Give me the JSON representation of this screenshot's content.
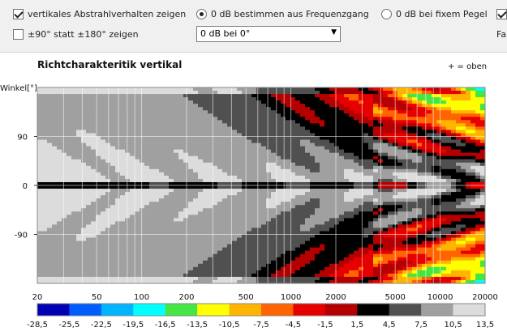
{
  "toolbar": {
    "vert_checkbox_label": "vertikales Abstrahlverhalten zeigen",
    "range_checkbox_label": "±90° statt ±180° zeigen",
    "radio1_label": "0 dB bestimmen aus Frequenzgang",
    "radio2_label": "0 dB bei fixem Pegel",
    "dropdown_value": "0 dB bei 0°",
    "cut_label": "Fa"
  },
  "chart_data": {
    "type": "heatmap",
    "title": "Richtcharakteritik vertikal",
    "note": "+ = oben",
    "ylabel": "Winkel[°]",
    "xlabel": "",
    "x_scale": "log",
    "xlim": [
      20,
      20000
    ],
    "ylim": [
      -180,
      180
    ],
    "x_ticks": [
      "20",
      "50",
      "100",
      "200",
      "500",
      "1000",
      "2000",
      "5000",
      "10000",
      "20000"
    ],
    "y_ticks": [
      "90",
      "0",
      "-90"
    ],
    "colorbar_ticks": [
      "-28,5",
      "-25,5",
      "-22,5",
      "-19,5",
      "-16,5",
      "-13,5",
      "-10,5",
      "-7,5",
      "-4,5",
      "-1,5",
      "1,5",
      "4,5",
      "7,5",
      "10,5",
      "13,5"
    ],
    "colorbar_colors": [
      "#0000b4",
      "#005cff",
      "#00b4ff",
      "#00ffff",
      "#44e644",
      "#ffff00",
      "#ffb400",
      "#ff6400",
      "#e60000",
      "#b40000",
      "#000000",
      "#505050",
      "#a0a0a0",
      "#dcdcdc"
    ]
  }
}
